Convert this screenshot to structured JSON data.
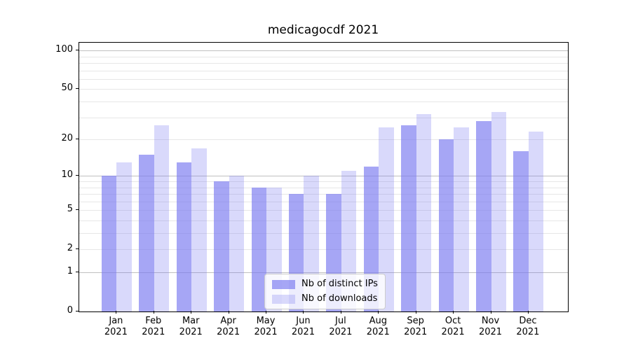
{
  "title": "medicagocdf 2021",
  "chart_data": {
    "type": "bar",
    "title": "medicagocdf 2021",
    "categories": [
      "Jan",
      "Feb",
      "Mar",
      "Apr",
      "May",
      "Jun",
      "Jul",
      "Aug",
      "Sep",
      "Oct",
      "Nov",
      "Dec"
    ],
    "year": "2021",
    "series": [
      {
        "name": "Nb of distinct IPs",
        "color": "#7878f0",
        "alpha": 0.66,
        "values": [
          10,
          15,
          13,
          9,
          8,
          7,
          7,
          12,
          26,
          20,
          28,
          16
        ]
      },
      {
        "name": "Nb of downloads",
        "color": "#7878f0",
        "alpha": 0.28,
        "values": [
          13,
          26,
          17,
          10,
          8,
          10,
          11,
          25,
          32,
          25,
          33,
          23
        ]
      }
    ],
    "yscale": "log1p",
    "ylim": [
      0,
      115
    ],
    "y_ticks": [
      0,
      1,
      2,
      5,
      10,
      20,
      50,
      100
    ],
    "grid": {
      "major": [
        1,
        10,
        100
      ],
      "minor": [
        2,
        3,
        4,
        5,
        6,
        7,
        8,
        9,
        20,
        30,
        40,
        50,
        60,
        70,
        80,
        90
      ]
    },
    "legend_position": "lower center",
    "grid_on": true
  },
  "colors": {
    "bar_base": "#7878f0",
    "major_grid": "#c0c0c0",
    "minor_grid": "#e7e7e7",
    "axis": "#000000",
    "legend_border": "#cccccc",
    "legend_bg": "#ffffff",
    "legend_bg_alpha": 0.8,
    "text": "#000000"
  }
}
